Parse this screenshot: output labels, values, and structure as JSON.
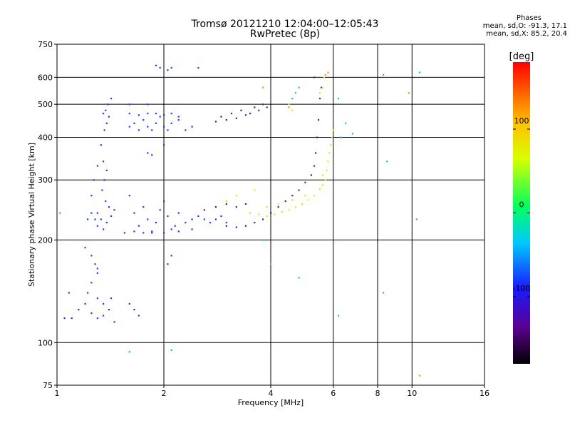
{
  "header": {
    "title_line1": "Tromsø 20121210 12:04:00–12:05:43",
    "title_line2": "RwPretec (8p)"
  },
  "phase_info": {
    "heading": "Phases",
    "line_o": "mean, sd,O: -91.3, 17.1",
    "line_x": "mean, sd,X: 85.2, 20.4"
  },
  "chart_data": {
    "type": "scatter",
    "xlabel": "Frequency [MHz]",
    "ylabel": "Stationary phase Virtual Height [km]",
    "x_scale": "log",
    "y_scale": "log",
    "xlim": [
      1,
      16
    ],
    "ylim": [
      75,
      750
    ],
    "x_ticks": [
      1,
      2,
      4,
      6,
      8,
      10,
      16
    ],
    "x_tick_labels": [
      "1",
      "2",
      "4",
      "6",
      "8",
      "10",
      "16"
    ],
    "x_gridlines": [
      2,
      4,
      6,
      8,
      10
    ],
    "y_ticks": [
      75,
      100,
      200,
      300,
      400,
      500,
      600,
      750
    ],
    "y_tick_labels": [
      "75",
      "100",
      "200",
      "300",
      "400",
      "500",
      "600",
      "750"
    ],
    "y_gridlines": [
      100,
      200,
      300,
      400,
      500,
      600
    ],
    "grid": true,
    "colorbar": {
      "label": "[deg]",
      "range": [
        -180,
        180
      ],
      "ticks": [
        100,
        0,
        -100
      ],
      "tick_labels": [
        "100",
        "0",
        "-100"
      ]
    },
    "series": [
      {
        "mode": "O",
        "color": "#1a3cff",
        "points": [
          [
            1.35,
            470
          ],
          [
            1.37,
            480
          ],
          [
            1.39,
            500
          ],
          [
            1.4,
            460
          ],
          [
            1.42,
            520
          ],
          [
            1.38,
            440
          ],
          [
            1.36,
            420
          ],
          [
            1.33,
            380
          ],
          [
            1.35,
            340
          ],
          [
            1.38,
            320
          ],
          [
            1.36,
            300
          ],
          [
            1.34,
            280
          ],
          [
            1.37,
            260
          ],
          [
            1.4,
            250
          ],
          [
            1.3,
            240
          ],
          [
            1.33,
            230
          ],
          [
            1.38,
            225
          ],
          [
            1.42,
            235
          ],
          [
            1.45,
            245
          ],
          [
            1.25,
            240
          ],
          [
            1.28,
            230
          ],
          [
            1.3,
            220
          ],
          [
            1.35,
            215
          ],
          [
            1.27,
            300
          ],
          [
            1.3,
            330
          ],
          [
            1.25,
            270
          ],
          [
            1.22,
            230
          ],
          [
            1.2,
            190
          ],
          [
            1.25,
            180
          ],
          [
            1.28,
            170
          ],
          [
            1.3,
            160
          ],
          [
            1.25,
            150
          ],
          [
            1.22,
            140
          ],
          [
            1.3,
            135
          ],
          [
            1.35,
            130
          ],
          [
            1.4,
            125
          ],
          [
            1.35,
            120
          ],
          [
            1.3,
            118
          ],
          [
            1.25,
            122
          ],
          [
            1.45,
            115
          ],
          [
            1.2,
            130
          ],
          [
            1.1,
            118
          ],
          [
            1.15,
            125
          ],
          [
            1.05,
            118
          ],
          [
            1.08,
            140
          ],
          [
            1.42,
            135
          ],
          [
            1.3,
            165
          ],
          [
            1.6,
            430
          ],
          [
            1.65,
            440
          ],
          [
            1.7,
            420
          ],
          [
            1.75,
            450
          ],
          [
            1.8,
            430
          ],
          [
            1.85,
            420
          ],
          [
            1.9,
            440
          ],
          [
            1.95,
            460
          ],
          [
            2.0,
            430
          ],
          [
            2.05,
            420
          ],
          [
            2.1,
            440
          ],
          [
            2.2,
            450
          ],
          [
            2.3,
            420
          ],
          [
            2.4,
            430
          ],
          [
            1.6,
            470
          ],
          [
            1.7,
            465
          ],
          [
            1.8,
            470
          ],
          [
            1.9,
            470
          ],
          [
            2.0,
            465
          ],
          [
            2.1,
            470
          ],
          [
            2.2,
            460
          ],
          [
            1.6,
            270
          ],
          [
            1.65,
            240
          ],
          [
            1.7,
            220
          ],
          [
            1.75,
            250
          ],
          [
            1.8,
            230
          ],
          [
            1.85,
            210
          ],
          [
            1.9,
            225
          ],
          [
            1.95,
            245
          ],
          [
            2.0,
            260
          ],
          [
            2.05,
            235
          ],
          [
            2.1,
            215
          ],
          [
            2.15,
            220
          ],
          [
            2.2,
            240
          ],
          [
            2.3,
            225
          ],
          [
            2.4,
            230
          ],
          [
            2.5,
            235
          ],
          [
            2.6,
            230
          ],
          [
            2.7,
            225
          ],
          [
            2.8,
            230
          ],
          [
            2.9,
            235
          ],
          [
            3.0,
            225
          ],
          [
            1.55,
            210
          ],
          [
            1.65,
            212
          ],
          [
            1.75,
            210
          ],
          [
            1.85,
            212
          ],
          [
            2.0,
            210
          ],
          [
            2.2,
            212
          ],
          [
            2.4,
            215
          ],
          [
            1.6,
            130
          ],
          [
            1.65,
            125
          ],
          [
            1.7,
            120
          ],
          [
            1.9,
            650
          ],
          [
            1.95,
            640
          ],
          [
            2.1,
            640
          ],
          [
            2.05,
            630
          ],
          [
            2.5,
            640
          ],
          [
            1.8,
            360
          ],
          [
            1.85,
            355
          ],
          [
            2.0,
            380
          ],
          [
            1.6,
            500
          ],
          [
            1.8,
            500
          ],
          [
            2.1,
            180
          ],
          [
            2.05,
            170
          ]
        ]
      },
      {
        "mode": "O-violet",
        "color": "#4a1aa8",
        "points": [
          [
            2.8,
            445
          ],
          [
            3.0,
            450
          ],
          [
            3.2,
            455
          ],
          [
            3.4,
            465
          ],
          [
            3.5,
            470
          ],
          [
            3.7,
            480
          ],
          [
            3.9,
            490
          ],
          [
            2.9,
            460
          ],
          [
            3.1,
            470
          ],
          [
            3.3,
            480
          ],
          [
            3.6,
            490
          ],
          [
            3.8,
            500
          ],
          [
            3.0,
            220
          ],
          [
            3.2,
            218
          ],
          [
            3.4,
            220
          ],
          [
            3.6,
            225
          ],
          [
            3.8,
            230
          ],
          [
            4.0,
            240
          ],
          [
            4.2,
            250
          ],
          [
            4.4,
            260
          ],
          [
            4.6,
            270
          ],
          [
            4.8,
            280
          ],
          [
            5.0,
            295
          ],
          [
            5.2,
            310
          ],
          [
            5.3,
            330
          ],
          [
            5.35,
            360
          ],
          [
            5.4,
            400
          ],
          [
            5.45,
            450
          ],
          [
            5.5,
            520
          ],
          [
            5.55,
            560
          ],
          [
            5.3,
            600
          ],
          [
            2.6,
            245
          ],
          [
            2.8,
            250
          ],
          [
            3.0,
            255
          ],
          [
            3.2,
            250
          ],
          [
            3.4,
            255
          ]
        ]
      },
      {
        "mode": "X",
        "color": "#dde81a",
        "points": [
          [
            3.5,
            240
          ],
          [
            3.7,
            238
          ],
          [
            3.9,
            235
          ],
          [
            4.1,
            238
          ],
          [
            4.3,
            242
          ],
          [
            4.5,
            245
          ],
          [
            4.7,
            250
          ],
          [
            4.9,
            255
          ],
          [
            5.1,
            262
          ],
          [
            5.3,
            270
          ],
          [
            5.5,
            282
          ],
          [
            5.6,
            290
          ],
          [
            5.7,
            300
          ],
          [
            5.75,
            320
          ],
          [
            5.8,
            340
          ],
          [
            5.85,
            360
          ],
          [
            5.9,
            380
          ],
          [
            5.95,
            400
          ],
          [
            6.0,
            420
          ],
          [
            3.9,
            250
          ],
          [
            4.2,
            255
          ],
          [
            4.6,
            262
          ],
          [
            5.0,
            270
          ],
          [
            5.6,
            310
          ],
          [
            5.6,
            560
          ],
          [
            5.65,
            600
          ],
          [
            5.5,
            540
          ],
          [
            4.5,
            500
          ],
          [
            4.6,
            480
          ],
          [
            3.0,
            260
          ],
          [
            3.2,
            270
          ],
          [
            3.6,
            280
          ]
        ]
      },
      {
        "mode": "X-orange",
        "color": "#ff8c1a",
        "points": [
          [
            5.7,
            610
          ],
          [
            5.8,
            620
          ],
          [
            3.8,
            560
          ],
          [
            9.8,
            540
          ],
          [
            10.5,
            80
          ],
          [
            4.5,
            490
          ],
          [
            4.0,
            170
          ]
        ]
      },
      {
        "mode": "scatter-misc",
        "color": "#1ab0ff",
        "points": [
          [
            4.7,
            540
          ],
          [
            4.8,
            560
          ],
          [
            4.6,
            520
          ],
          [
            6.2,
            520
          ],
          [
            8.3,
            610
          ],
          [
            8.5,
            340
          ],
          [
            10.5,
            620
          ],
          [
            6.3,
            400
          ],
          [
            6.8,
            410
          ],
          [
            6.5,
            440
          ],
          [
            8.3,
            140
          ],
          [
            10.3,
            230
          ],
          [
            6.2,
            120
          ],
          [
            2.1,
            95
          ],
          [
            1.6,
            94
          ],
          [
            3.8,
            200
          ],
          [
            4.8,
            155
          ],
          [
            1.02,
            240
          ]
        ]
      }
    ]
  }
}
